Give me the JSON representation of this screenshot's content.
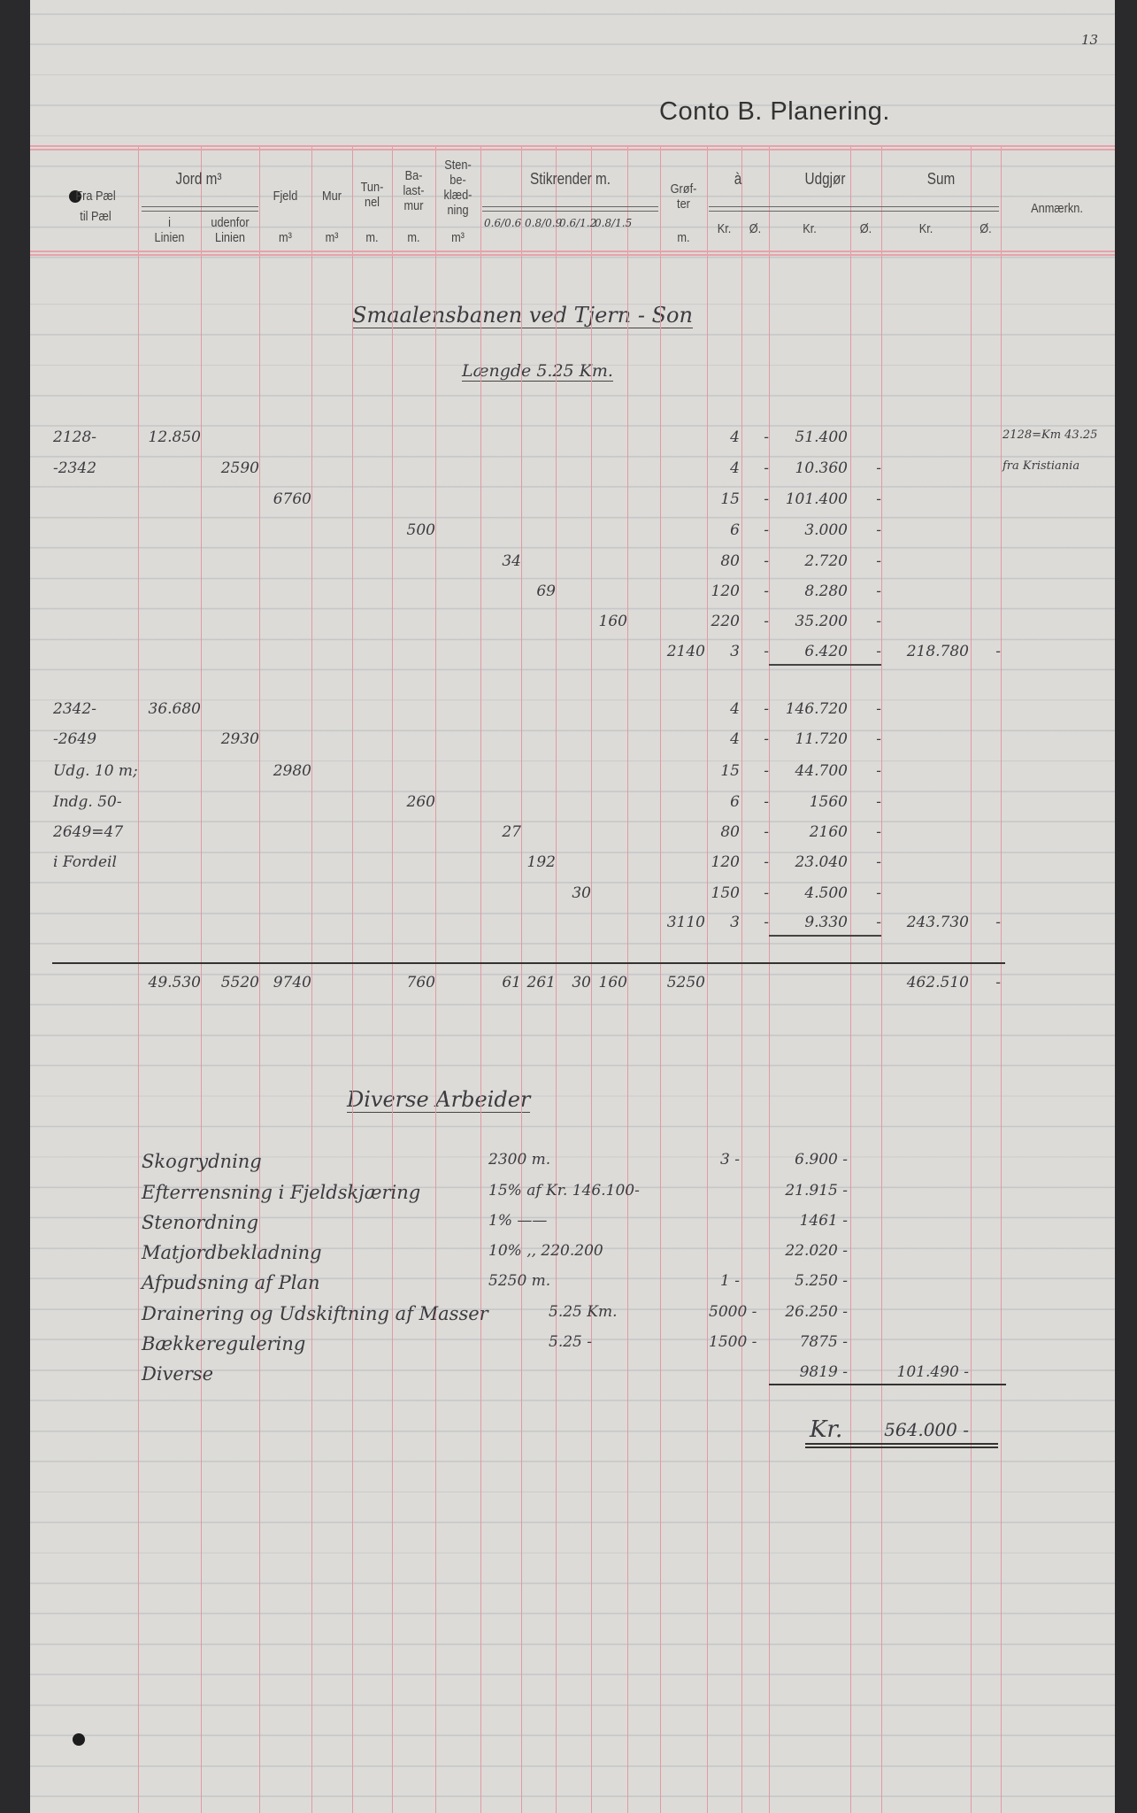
{
  "page_number": "13",
  "title": "Conto B.  Planering.",
  "header": {
    "fra_pael": "Fra Pæl",
    "til_pael": "til Pæl",
    "jord": "Jord m³",
    "jord_i": "i\nLinien",
    "jord_udenfor": "udenfor\nLinien",
    "fjeld": "Fjeld",
    "fjeld_unit": "m³",
    "mur": "Mur",
    "mur_unit": "m³",
    "tunnel": "Tun-\nnel",
    "tunnel_unit": "m.",
    "ballastmur": "Ba-\nlast-\nmur",
    "ballastmur_unit": "m.",
    "stenbekl": "Sten-\nbe-\nklæd-\nning",
    "stenbekl_unit": "m³",
    "stikrender": "Stikrender m.",
    "stik_sizes": [
      "0.6/0.6",
      "0.8/0.9",
      "0.6/1.2",
      "0.8/1.5"
    ],
    "grofter": "Grøf-\nter",
    "grofter_unit": "m.",
    "a": "à",
    "udgjor": "Udgjør",
    "sum": "Sum",
    "kr": "Kr.",
    "ore": "Ø.",
    "anmaerkn": "Anmærkn."
  },
  "section_title": "Smaalensbanen ved Tjern - Son",
  "section_length": "Længde 5.25 Km.",
  "rows": [
    {
      "fra": "2128-",
      "jord_i": "12.850",
      "a_kr": "4",
      "a_o": "-",
      "udg_kr": "51.400",
      "anm": "2128=Km 43.25"
    },
    {
      "fra": "-2342",
      "jord_u": "2590",
      "a_kr": "4",
      "a_o": "-",
      "udg_kr": "10.360",
      "udg_o": "-",
      "anm": "fra Kristiania"
    },
    {
      "fjeld": "6760",
      "a_kr": "15",
      "a_o": "-",
      "udg_kr": "101.400",
      "udg_o": "-"
    },
    {
      "ballast": "500",
      "a_kr": "6",
      "a_o": "-",
      "udg_kr": "3.000",
      "udg_o": "-"
    },
    {
      "s1": "34",
      "a_kr": "80",
      "a_o": "-",
      "udg_kr": "2.720",
      "udg_o": "-"
    },
    {
      "s2": "69",
      "a_kr": "120",
      "a_o": "-",
      "udg_kr": "8.280",
      "udg_o": "-"
    },
    {
      "s4": "160",
      "a_kr": "220",
      "a_o": "-",
      "udg_kr": "35.200",
      "udg_o": "-"
    },
    {
      "grofter": "2140",
      "a_kr": "3",
      "a_o": "-",
      "udg_kr": "6.420",
      "udg_o": "-",
      "sum_kr": "218.780",
      "sum_o": "-",
      "underline": true
    },
    {
      "fra": "2342-",
      "jord_i": "36.680",
      "a_kr": "4",
      "a_o": "-",
      "udg_kr": "146.720",
      "udg_o": "-"
    },
    {
      "fra": "-2649",
      "jord_u": "2930",
      "a_kr": "4",
      "a_o": "-",
      "udg_kr": "11.720",
      "udg_o": "-"
    },
    {
      "fra": "Udg. 10 m;",
      "fjeld": "2980",
      "a_kr": "15",
      "a_o": "-",
      "udg_kr": "44.700",
      "udg_o": "-"
    },
    {
      "fra": "Indg. 50-",
      "ballast": "260",
      "a_kr": "6",
      "a_o": "-",
      "udg_kr": "1560",
      "udg_o": "-"
    },
    {
      "fra": "2649=47",
      "s1": "27",
      "a_kr": "80",
      "a_o": "-",
      "udg_kr": "2160",
      "udg_o": "-"
    },
    {
      "fra": "i Fordeil",
      "s2": "192",
      "a_kr": "120",
      "a_o": "-",
      "udg_kr": "23.040",
      "udg_o": "-"
    },
    {
      "s3": "30",
      "a_kr": "150",
      "a_o": "-",
      "udg_kr": "4.500",
      "udg_o": "-"
    },
    {
      "grofter": "3110",
      "a_kr": "3",
      "a_o": "-",
      "udg_kr": "9.330",
      "udg_o": "-",
      "sum_kr": "243.730",
      "sum_o": "-",
      "underline": true
    }
  ],
  "totals": {
    "jord_i": "49.530",
    "jord_u": "5520",
    "fjeld": "9740",
    "ballast": "760",
    "s1": "61",
    "s2": "261",
    "s3": "30",
    "s4": "160",
    "grofter": "5250",
    "sum_kr": "462.510",
    "sum_o": "-"
  },
  "diverse_title": "Diverse Arbeider",
  "diverse": [
    {
      "label": "Skogrydning",
      "qty": "2300 m.",
      "a": "3 -",
      "udg": "6.900 -"
    },
    {
      "label": "Efterrensning i Fjeldskjæring",
      "qty": "15% af Kr. 146.100-",
      "udg": "21.915 -"
    },
    {
      "label": "Stenordning",
      "qty": "1% ——",
      "udg": "1461 -"
    },
    {
      "label": "Matjordbekladning",
      "qty": "10% ,, 220.200",
      "udg": "22.020 -"
    },
    {
      "label": "Afpudsning af Plan",
      "qty": "5250 m.",
      "a": "1 -",
      "udg": "5.250 -"
    },
    {
      "label": "Drainering og Udskiftning af Masser",
      "qty": "5.25 Km.",
      "a": "5000 -",
      "udg": "26.250 -"
    },
    {
      "label": "Bækkeregulering",
      "qty": "5.25 -",
      "a": "1500 -",
      "udg": "7875 -"
    },
    {
      "label": "Diverse",
      "udg": "9819 -",
      "sum": "101.490 -"
    }
  ],
  "grand_total": {
    "label": "Kr.",
    "value": "564.000 -"
  }
}
